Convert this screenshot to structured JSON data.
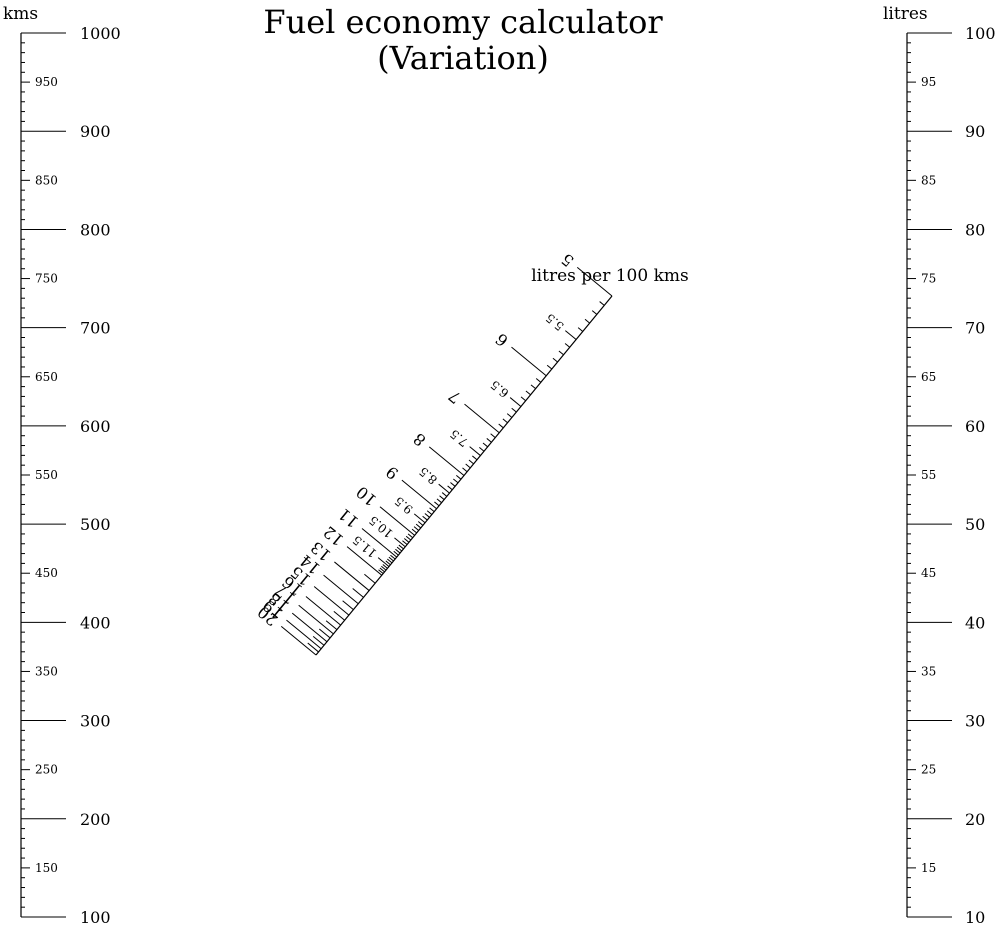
{
  "title": {
    "line1": "Fuel economy calculator",
    "line2": "(Variation)"
  },
  "chart_data": {
    "type": "nomogram",
    "scales": [
      {
        "key": "kms",
        "label": "kms",
        "min": 100,
        "max": 1000,
        "major_labels": [
          100,
          200,
          300,
          400,
          500,
          600,
          700,
          800,
          900,
          1000
        ],
        "minor_labels": [
          150,
          250,
          350,
          450,
          550,
          650,
          750,
          850,
          950
        ],
        "minor_step": 10
      },
      {
        "key": "litres",
        "label": "litres",
        "min": 10,
        "max": 100,
        "major_labels": [
          10,
          20,
          30,
          40,
          50,
          60,
          70,
          80,
          90,
          100
        ],
        "minor_labels": [
          15,
          25,
          35,
          45,
          55,
          65,
          75,
          85,
          95
        ],
        "minor_step": 1
      },
      {
        "key": "lp100",
        "label": "litres per 100 kms",
        "min": 5,
        "max": 20,
        "major_labels": [
          5,
          6,
          7,
          8,
          9,
          10,
          11,
          12,
          13,
          14,
          15,
          16,
          17,
          18,
          19,
          20
        ],
        "minor_labels": [
          5.5,
          6.5,
          7.5,
          8.5,
          9.5,
          10.5,
          11.5
        ]
      }
    ]
  }
}
